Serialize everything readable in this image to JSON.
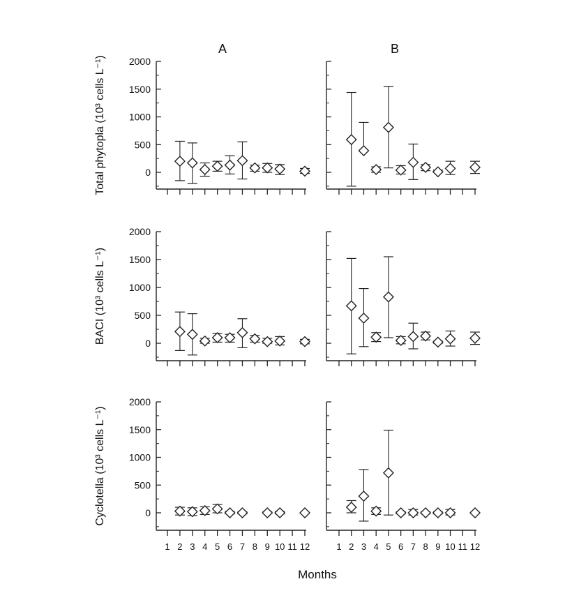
{
  "figure": {
    "column_labels": [
      "A",
      "B"
    ],
    "xlabel": "Months",
    "x_ticks": [
      "1",
      "2",
      "3",
      "4",
      "5",
      "6",
      "7",
      "8",
      "9",
      "10",
      "11",
      "12"
    ]
  },
  "chart_data": [
    {
      "type": "scatter",
      "panel": "A",
      "ylabel": "Total phytopla (10³ cells L⁻¹)",
      "ylim": [
        -300,
        2000
      ],
      "y_ticks": [
        0,
        500,
        1000,
        1500,
        2000
      ],
      "points": [
        {
          "x": 2,
          "y": 200,
          "err_low": -150,
          "err_high": 560
        },
        {
          "x": 3,
          "y": 170,
          "err_low": -200,
          "err_high": 530
        },
        {
          "x": 4,
          "y": 50,
          "err_low": -70,
          "err_high": 170
        },
        {
          "x": 5,
          "y": 110,
          "err_low": 20,
          "err_high": 200
        },
        {
          "x": 6,
          "y": 130,
          "err_low": -30,
          "err_high": 300
        },
        {
          "x": 7,
          "y": 210,
          "err_low": -120,
          "err_high": 550
        },
        {
          "x": 8,
          "y": 80,
          "err_low": 20,
          "err_high": 130
        },
        {
          "x": 9,
          "y": 80,
          "err_low": 0,
          "err_high": 160
        },
        {
          "x": 10,
          "y": 60,
          "err_low": -40,
          "err_high": 140
        },
        {
          "x": 12,
          "y": 20,
          "err_low": -20,
          "err_high": 70
        }
      ]
    },
    {
      "type": "scatter",
      "panel": "B",
      "ylabel": "Total phytopla (10³ cells L⁻¹)",
      "ylim": [
        -300,
        2000
      ],
      "y_ticks": [
        0,
        500,
        1000,
        1500,
        2000
      ],
      "points": [
        {
          "x": 2,
          "y": 590,
          "err_low": -250,
          "err_high": 1440
        },
        {
          "x": 3,
          "y": 390,
          "err_low": null,
          "err_high": 900
        },
        {
          "x": 4,
          "y": 50,
          "err_low": 0,
          "err_high": 100
        },
        {
          "x": 5,
          "y": 810,
          "err_low": 80,
          "err_high": 1550
        },
        {
          "x": 6,
          "y": 40,
          "err_low": -30,
          "err_high": 120
        },
        {
          "x": 7,
          "y": 180,
          "err_low": -130,
          "err_high": 510
        },
        {
          "x": 8,
          "y": 90,
          "err_low": 30,
          "err_high": 140
        },
        {
          "x": 9,
          "y": 10,
          "err_low": 0,
          "err_high": 40
        },
        {
          "x": 10,
          "y": 70,
          "err_low": -40,
          "err_high": 200
        },
        {
          "x": 12,
          "y": 90,
          "err_low": -20,
          "err_high": 200
        }
      ]
    },
    {
      "type": "scatter",
      "panel": "A",
      "ylabel": "BACI (10³ cells L⁻¹)",
      "ylim": [
        -300,
        2000
      ],
      "y_ticks": [
        0,
        500,
        1000,
        1500,
        2000
      ],
      "points": [
        {
          "x": 2,
          "y": 210,
          "err_low": -130,
          "err_high": 560
        },
        {
          "x": 3,
          "y": 160,
          "err_low": -210,
          "err_high": 530
        },
        {
          "x": 4,
          "y": 40,
          "err_low": 0,
          "err_high": 90
        },
        {
          "x": 5,
          "y": 100,
          "err_low": 20,
          "err_high": 180
        },
        {
          "x": 6,
          "y": 100,
          "err_low": 20,
          "err_high": 160
        },
        {
          "x": 7,
          "y": 190,
          "err_low": -80,
          "err_high": 440
        },
        {
          "x": 8,
          "y": 80,
          "err_low": 20,
          "err_high": 140
        },
        {
          "x": 9,
          "y": 30,
          "err_low": 0,
          "err_high": 90
        },
        {
          "x": 10,
          "y": 40,
          "err_low": -30,
          "err_high": 120
        },
        {
          "x": 12,
          "y": 30,
          "err_low": -10,
          "err_high": 70
        }
      ]
    },
    {
      "type": "scatter",
      "panel": "B",
      "ylabel": "BACI (10³ cells L⁻¹)",
      "ylim": [
        -300,
        2000
      ],
      "y_ticks": [
        0,
        500,
        1000,
        1500,
        2000
      ],
      "points": [
        {
          "x": 2,
          "y": 670,
          "err_low": -190,
          "err_high": 1520
        },
        {
          "x": 3,
          "y": 450,
          "err_low": -60,
          "err_high": 980
        },
        {
          "x": 4,
          "y": 110,
          "err_low": 30,
          "err_high": 190
        },
        {
          "x": 5,
          "y": 830,
          "err_low": 100,
          "err_high": 1550
        },
        {
          "x": 6,
          "y": 50,
          "err_low": -10,
          "err_high": 120
        },
        {
          "x": 7,
          "y": 120,
          "err_low": -100,
          "err_high": 360
        },
        {
          "x": 8,
          "y": 130,
          "err_low": 60,
          "err_high": 200
        },
        {
          "x": 9,
          "y": 20,
          "err_low": 0,
          "err_high": 40
        },
        {
          "x": 10,
          "y": 80,
          "err_low": -50,
          "err_high": 220
        },
        {
          "x": 12,
          "y": 90,
          "err_low": -20,
          "err_high": 200
        }
      ]
    },
    {
      "type": "scatter",
      "panel": "A",
      "ylabel": "Cyclotella (10³ cells L⁻¹)",
      "ylim": [
        -300,
        2000
      ],
      "y_ticks": [
        0,
        500,
        1000,
        1500,
        2000
      ],
      "points": [
        {
          "x": 2,
          "y": 30,
          "err_low": -40,
          "err_high": 100
        },
        {
          "x": 3,
          "y": 20,
          "err_low": -50,
          "err_high": 90
        },
        {
          "x": 4,
          "y": 40,
          "err_low": -30,
          "err_high": 110
        },
        {
          "x": 5,
          "y": 70,
          "err_low": 0,
          "err_high": 150
        },
        {
          "x": 6,
          "y": 0,
          "err_low": -20,
          "err_high": 30
        },
        {
          "x": 7,
          "y": 0,
          "err_low": -20,
          "err_high": 20
        },
        {
          "x": 9,
          "y": 0,
          "err_low": -10,
          "err_high": 20
        },
        {
          "x": 10,
          "y": 0,
          "err_low": -20,
          "err_high": 30
        },
        {
          "x": 12,
          "y": 0,
          "err_low": -10,
          "err_high": 10
        }
      ]
    },
    {
      "type": "scatter",
      "panel": "B",
      "ylabel": "Cyclotella (10³ cells L⁻¹)",
      "ylim": [
        -300,
        2000
      ],
      "y_ticks": [
        0,
        500,
        1000,
        1500,
        2000
      ],
      "points": [
        {
          "x": 2,
          "y": 100,
          "err_low": 0,
          "err_high": 220
        },
        {
          "x": 3,
          "y": 300,
          "err_low": -150,
          "err_high": 780
        },
        {
          "x": 4,
          "y": 30,
          "err_low": -30,
          "err_high": 90
        },
        {
          "x": 5,
          "y": 720,
          "err_low": -40,
          "err_high": 1490
        },
        {
          "x": 6,
          "y": 0,
          "err_low": -20,
          "err_high": 20
        },
        {
          "x": 7,
          "y": 0,
          "err_low": -40,
          "err_high": 60
        },
        {
          "x": 8,
          "y": 0,
          "err_low": -20,
          "err_high": 20
        },
        {
          "x": 9,
          "y": 0,
          "err_low": -20,
          "err_high": 20
        },
        {
          "x": 10,
          "y": 0,
          "err_low": -40,
          "err_high": 60
        },
        {
          "x": 12,
          "y": 0,
          "err_low": -10,
          "err_high": 10
        }
      ]
    }
  ]
}
